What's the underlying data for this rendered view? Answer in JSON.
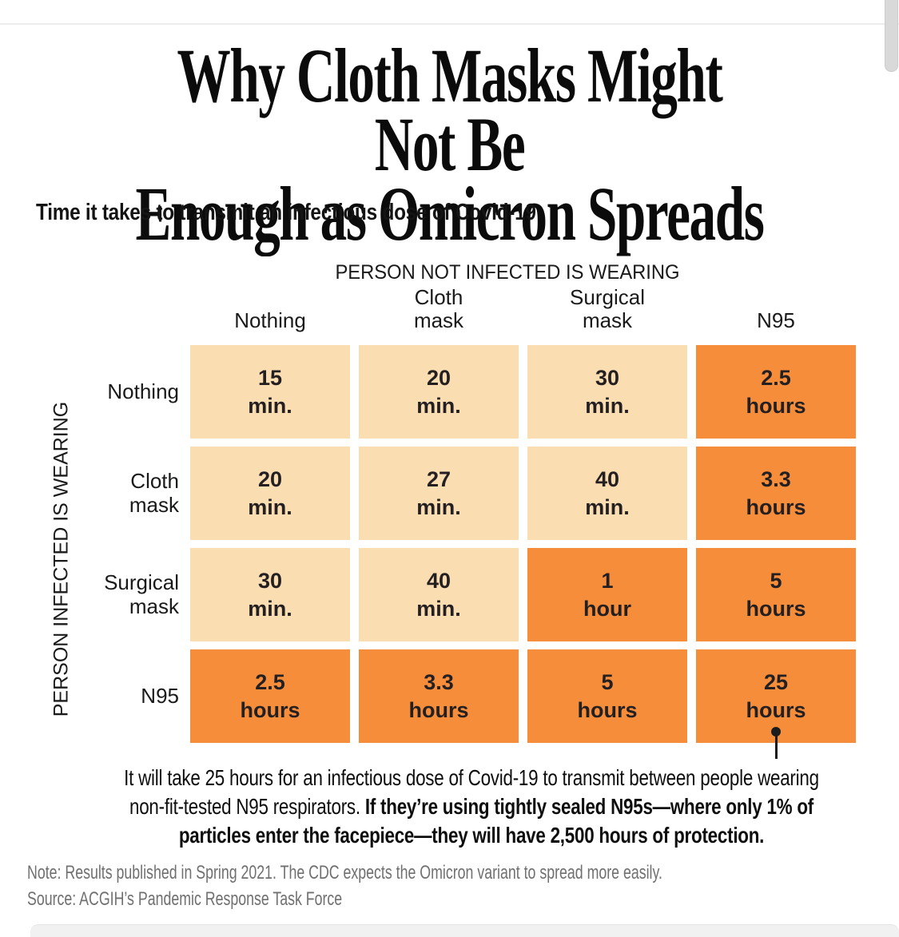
{
  "header": {
    "title_line1": "Why Cloth Masks Might Not Be",
    "title_line2": "Enough as Omicron Spreads",
    "subtitle": "Time it takes to transmit an infectious dose of Covid-19"
  },
  "chart_data": {
    "type": "heatmap",
    "title": "Time it takes to transmit an infectious dose of Covid-19",
    "x_group_label": "PERSON NOT INFECTED IS WEARING",
    "y_group_label": "PERSON INFECTED IS WEARING",
    "columns": [
      "Nothing",
      "Cloth mask",
      "Surgical mask",
      "N95"
    ],
    "rows": [
      "Nothing",
      "Cloth mask",
      "Surgical mask",
      "N95"
    ],
    "cells": [
      [
        {
          "v": "15",
          "u": "min.",
          "level": "light"
        },
        {
          "v": "20",
          "u": "min.",
          "level": "light"
        },
        {
          "v": "30",
          "u": "min.",
          "level": "light"
        },
        {
          "v": "2.5",
          "u": "hours",
          "level": "dark"
        }
      ],
      [
        {
          "v": "20",
          "u": "min.",
          "level": "light"
        },
        {
          "v": "27",
          "u": "min.",
          "level": "light"
        },
        {
          "v": "40",
          "u": "min.",
          "level": "light"
        },
        {
          "v": "3.3",
          "u": "hours",
          "level": "dark"
        }
      ],
      [
        {
          "v": "30",
          "u": "min.",
          "level": "light"
        },
        {
          "v": "40",
          "u": "min.",
          "level": "light"
        },
        {
          "v": "1",
          "u": "hour",
          "level": "dark"
        },
        {
          "v": "5",
          "u": "hours",
          "level": "dark"
        }
      ],
      [
        {
          "v": "2.5",
          "u": "hours",
          "level": "dark"
        },
        {
          "v": "3.3",
          "u": "hours",
          "level": "dark"
        },
        {
          "v": "5",
          "u": "hours",
          "level": "dark"
        },
        {
          "v": "25",
          "u": "hours",
          "level": "dark"
        }
      ]
    ],
    "colors": {
      "light_cell": "#fbddb2",
      "dark_cell": "#f58d3b",
      "cell_text": "#242021"
    },
    "legend_position": "none",
    "grid": "off"
  },
  "annotation": {
    "lines": [
      {
        "regular": "It will take 25 hours for an infectious dose of Covid-19 to transmit between people wearing",
        "bold": ""
      },
      {
        "regular": "non-fit-tested N95 respirators. ",
        "bold": "If they’re using tightly sealed N95s—where only 1% of"
      },
      {
        "regular": "",
        "bold": "particles enter the facepiece—they will have 2,500 hours of protection."
      }
    ]
  },
  "footer": {
    "note": "Note: Results published in Spring 2021. The CDC expects the Omicron variant to spread more easily.",
    "source": "Source: ACGIH’s Pandemic Response Task Force"
  }
}
